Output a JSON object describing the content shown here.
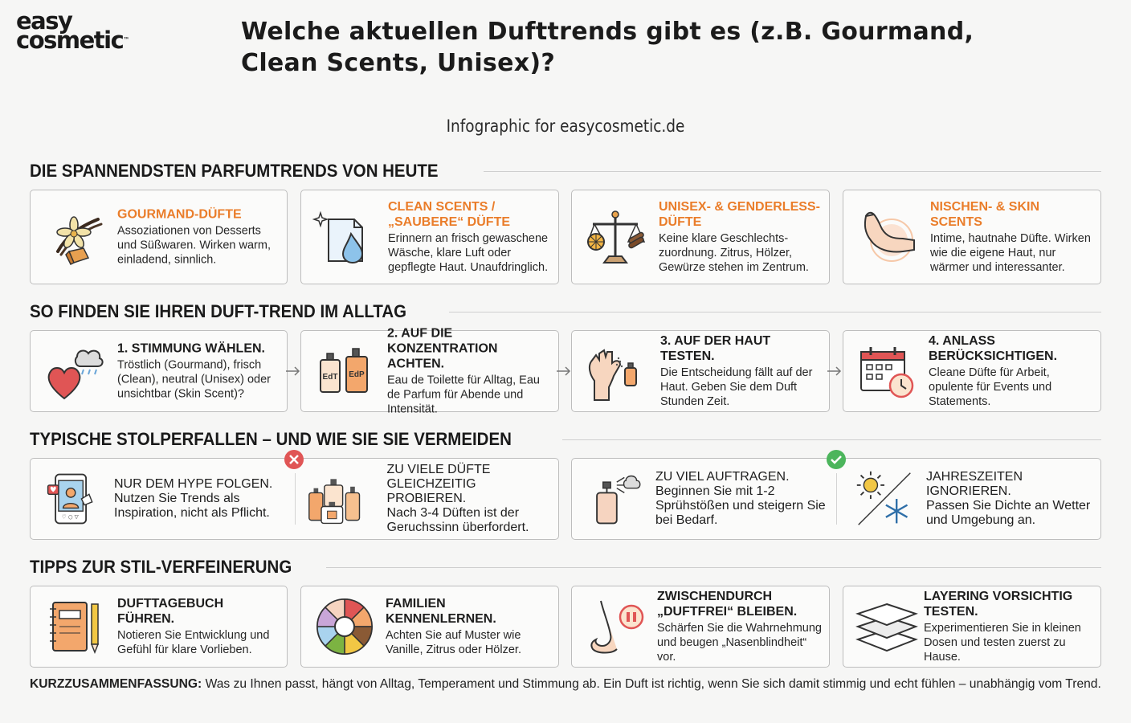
{
  "brand": {
    "line1": "easy",
    "line2": "cosmetic",
    "tm": "™"
  },
  "title": "Welche aktuellen Dufttrends gibt es (z.B. Gourmand, Clean Scents, Unisex)?",
  "subtitle": "Infographic for easycosmetic.de",
  "sections": {
    "trends": "DIE SPANNENDSTEN PARFUMTRENDS VON HEUTE",
    "steps": "SO FINDEN SIE IHREN DUFT-TREND IM ALLTAG",
    "pitfalls": "TYPISCHE STOLPERFALLEN – UND WIE SIE SIE VERMEIDEN",
    "tips": "TIPPS ZUR STIL-VERFEINERUNG"
  },
  "trends": [
    {
      "title": "GOURMAND-DÜFTE",
      "text": "Assoziationen von Desserts und Süßwaren. Wirken warm, einladend, sinnlich.",
      "icon": "vanilla-caramel-icon"
    },
    {
      "title": "CLEAN SCENTS / „SAUBERE“ DÜFTE",
      "text": "Erinnern an frisch gewaschene Wäsche, klare Luft oder gepflegte Haut. Unaufdringlich.",
      "icon": "clean-drop-icon"
    },
    {
      "title": "UNISEX- & GENDERLESS-DÜFTE",
      "text": "Keine klare Geschlechts-zuordnung. Zitrus, Hölzer, Gewürze stehen im Zentrum.",
      "icon": "balance-scale-icon"
    },
    {
      "title": "NISCHEN- & SKIN SCENTS",
      "text": "Intime, hautnahe Düfte. Wirken wie die eigene Haut, nur wärmer und interessanter.",
      "icon": "skin-arm-icon"
    }
  ],
  "steps": [
    {
      "title": "1. STIMMUNG WÄHLEN.",
      "text": "Tröstlich (Gourmand), frisch (Clean), neutral (Unisex) oder unsichtbar (Skin Scent)?",
      "icon": "heart-cloud-icon"
    },
    {
      "title": "2. AUF DIE KONZENTRATION ACHTEN.",
      "text": "Eau de Toilette für Alltag, Eau de Parfum für Abende und Intensität.",
      "icon": "edt-edp-bottles-icon",
      "edt": "EdT",
      "edp": "EdP"
    },
    {
      "title": "3. AUF DER HAUT TESTEN.",
      "text": "Die Entscheidung fällt auf der Haut. Geben Sie dem Duft Stunden Zeit.",
      "icon": "hand-spray-icon"
    },
    {
      "title": "4. ANLASS BERÜCKSICHTIGEN.",
      "text": "Cleane Düfte für Arbeit, opulente für Events und Statements.",
      "icon": "calendar-clock-icon"
    }
  ],
  "pitfalls": [
    {
      "title": "NUR DEM HYPE FOLGEN.",
      "text": "Nutzen Sie Trends als Inspiration, nicht als Pflicht.",
      "icon": "social-phone-icon"
    },
    {
      "title": "ZU VIELE DÜFTE GLEICHZEITIG PROBIEREN.",
      "text": "Nach 3-4 Düften ist der Geruchssinn überfordert.",
      "icon": "many-bottles-icon"
    },
    {
      "title": "ZU VIEL AUFTRAGEN.",
      "text": "Beginnen Sie mit 1-2 Sprühstößen und steigern Sie bei Bedarf.",
      "icon": "spray-bottle-icon"
    },
    {
      "title": "JAHRESZEITEN IGNORIEREN.",
      "text": "Passen Sie Dichte an Wetter und Umgebung an.",
      "icon": "sun-snowflake-icon"
    }
  ],
  "tips": [
    {
      "title": "DUFTTAGEBUCH FÜHREN.",
      "text": "Notieren Sie Entwicklung und Gefühl für klare Vorlieben.",
      "icon": "notebook-pencil-icon"
    },
    {
      "title": "FAMILIEN KENNENLERNEN.",
      "text": "Achten Sie auf Muster wie Vanille, Zitrus oder Hölzer.",
      "icon": "scent-wheel-icon"
    },
    {
      "title": "ZWISCHENDURCH „DUFTFREI“ BLEIBEN.",
      "text": "Schärfen Sie die Wahrnehmung und beugen „Nasenblindheit“ vor.",
      "icon": "nose-pause-icon"
    },
    {
      "title": "LAYERING VORSICHTIG TESTEN.",
      "text": "Experimentieren Sie in kleinen Dosen und testen zuerst zu Hause.",
      "icon": "layers-icon"
    }
  ],
  "summary": {
    "label": "KURZZUSAMMENFASSUNG:",
    "text": " Was zu Ihnen passt, hängt von Alltag, Temperament und Stimmung ab. Ein Duft ist richtig, wenn Sie sich damit stimmig und echt fühlen – unabhängig vom Trend."
  },
  "colors": {
    "accent": "#ea7d2a",
    "wrong": "#e05555",
    "right": "#4cb55c",
    "border": "#bdbdbd"
  }
}
